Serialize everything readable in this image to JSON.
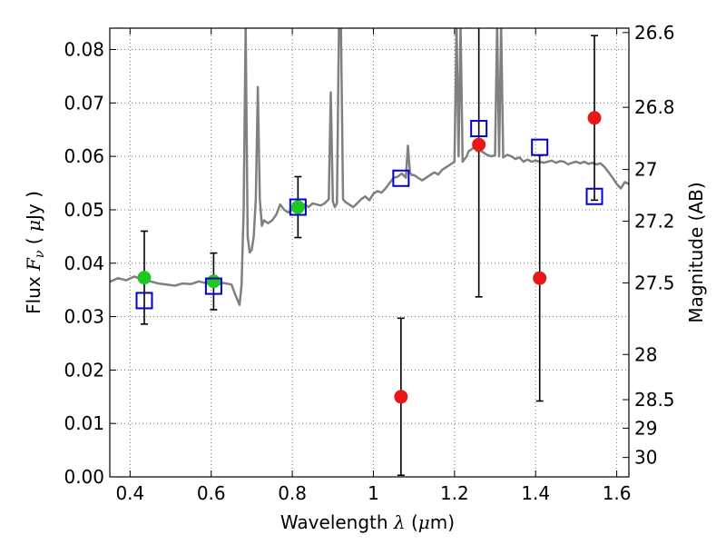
{
  "chart_data": {
    "type": "scatter",
    "xlabel": "Wavelength  λ (μm)",
    "ylabel": "Flux  Fν  ( μJy )",
    "ylabel_parts": [
      "Flux ",
      "F",
      "ν",
      " ( ",
      "μ",
      "Jy )"
    ],
    "xlabel_parts": [
      "Wavelength  ",
      "λ",
      " (",
      "μ",
      "m)"
    ],
    "y2label": "Magnitude (AB)",
    "xlim": [
      0.35,
      1.63
    ],
    "ylim": [
      0.0,
      0.084
    ],
    "grid": true,
    "x_ticks": [
      0.4,
      0.6,
      0.8,
      1.0,
      1.2,
      1.4,
      1.6
    ],
    "x_tick_labels": [
      "0.4",
      "0.6",
      "0.8",
      "1",
      "1.2",
      "1.4",
      "1.6"
    ],
    "y_ticks": [
      0.0,
      0.01,
      0.02,
      0.03,
      0.04,
      0.05,
      0.06,
      0.07,
      0.08
    ],
    "y_tick_labels": [
      "0.00",
      "0.01",
      "0.02",
      "0.03",
      "0.04",
      "0.05",
      "0.06",
      "0.07",
      "0.08"
    ],
    "mag_ticks": [
      26.6,
      26.8,
      27,
      27.2,
      27.5,
      28,
      28.5,
      29,
      30
    ],
    "mag_tick_labels": [
      "26.6",
      "26.8",
      "27",
      "27.2",
      "27.5",
      "28",
      "28.5",
      "29",
      "30"
    ],
    "colors": {
      "model": "#808080",
      "detected": "#1ec81e",
      "nondetected": "#e81818",
      "model_phot": "#0000cc",
      "errorbar": "#000000",
      "grid": "#777777"
    },
    "series": [
      {
        "marker": "circle",
        "color": "#1ec81e",
        "points": [
          {
            "x": 0.435,
            "y": 0.0373,
            "err": 0.0087
          },
          {
            "x": 0.606,
            "y": 0.0366,
            "err": 0.0053
          },
          {
            "x": 0.814,
            "y": 0.0505,
            "err": 0.0057
          }
        ]
      },
      {
        "marker": "circle",
        "color": "#e81818",
        "points": [
          {
            "x": 1.068,
            "y": 0.015,
            "err": 0.0147
          },
          {
            "x": 1.26,
            "y": 0.0622,
            "err": 0.0285
          },
          {
            "x": 1.41,
            "y": 0.0372,
            "err": 0.023
          },
          {
            "x": 1.545,
            "y": 0.0672,
            "err": 0.0154
          }
        ]
      },
      {
        "marker": "open-square",
        "color": "#0000cc",
        "points": [
          {
            "x": 0.435,
            "y": 0.033
          },
          {
            "x": 0.606,
            "y": 0.0357
          },
          {
            "x": 0.814,
            "y": 0.0505
          },
          {
            "x": 1.068,
            "y": 0.0559
          },
          {
            "x": 1.26,
            "y": 0.0652
          },
          {
            "x": 1.41,
            "y": 0.0617
          },
          {
            "x": 1.545,
            "y": 0.0525
          }
        ]
      }
    ],
    "model_spectrum": {
      "x": [
        0.35,
        0.37,
        0.39,
        0.41,
        0.43,
        0.45,
        0.47,
        0.49,
        0.51,
        0.53,
        0.55,
        0.57,
        0.59,
        0.61,
        0.63,
        0.65,
        0.66,
        0.67,
        0.675,
        0.68,
        0.685,
        0.69,
        0.695,
        0.7,
        0.705,
        0.71,
        0.715,
        0.72,
        0.725,
        0.73,
        0.74,
        0.75,
        0.76,
        0.77,
        0.78,
        0.79,
        0.8,
        0.81,
        0.82,
        0.83,
        0.84,
        0.85,
        0.86,
        0.87,
        0.88,
        0.89,
        0.895,
        0.9,
        0.905,
        0.91,
        0.915,
        0.92,
        0.925,
        0.93,
        0.94,
        0.95,
        0.96,
        0.97,
        0.98,
        0.99,
        1.0,
        1.01,
        1.02,
        1.03,
        1.04,
        1.05,
        1.06,
        1.07,
        1.08,
        1.085,
        1.09,
        1.095,
        1.1,
        1.11,
        1.12,
        1.13,
        1.14,
        1.15,
        1.16,
        1.17,
        1.18,
        1.19,
        1.2,
        1.205,
        1.21,
        1.215,
        1.22,
        1.225,
        1.23,
        1.235,
        1.24,
        1.245,
        1.25,
        1.255,
        1.26,
        1.27,
        1.28,
        1.29,
        1.3,
        1.305,
        1.31,
        1.315,
        1.32,
        1.33,
        1.34,
        1.35,
        1.36,
        1.37,
        1.38,
        1.39,
        1.4,
        1.41,
        1.42,
        1.43,
        1.44,
        1.45,
        1.46,
        1.47,
        1.48,
        1.49,
        1.5,
        1.51,
        1.52,
        1.53,
        1.54,
        1.55,
        1.56,
        1.57,
        1.58,
        1.59,
        1.6,
        1.61,
        1.62,
        1.63
      ],
      "y": [
        0.0365,
        0.0372,
        0.0368,
        0.0375,
        0.037,
        0.0366,
        0.0362,
        0.036,
        0.0358,
        0.0362,
        0.0361,
        0.0366,
        0.0362,
        0.0359,
        0.0363,
        0.036,
        0.034,
        0.0322,
        0.036,
        0.05,
        0.0845,
        0.045,
        0.042,
        0.0425,
        0.045,
        0.052,
        0.073,
        0.052,
        0.047,
        0.048,
        0.0475,
        0.048,
        0.049,
        0.051,
        0.05,
        0.0495,
        0.05,
        0.0505,
        0.051,
        0.051,
        0.0505,
        0.0512,
        0.051,
        0.0508,
        0.0512,
        0.052,
        0.072,
        0.0515,
        0.0505,
        0.0512,
        0.0845,
        0.0845,
        0.052,
        0.0515,
        0.051,
        0.0505,
        0.0512,
        0.052,
        0.0525,
        0.0518,
        0.053,
        0.0535,
        0.0532,
        0.054,
        0.055,
        0.056,
        0.0562,
        0.0568,
        0.056,
        0.062,
        0.057,
        0.0565,
        0.0565,
        0.056,
        0.0555,
        0.056,
        0.0565,
        0.057,
        0.0566,
        0.0575,
        0.058,
        0.0585,
        0.059,
        0.0845,
        0.06,
        0.0845,
        0.059,
        0.0595,
        0.06,
        0.061,
        0.0612,
        0.0615,
        0.062,
        0.061,
        0.0612,
        0.0608,
        0.0603,
        0.06,
        0.0602,
        0.0845,
        0.06,
        0.0845,
        0.0598,
        0.0603,
        0.06,
        0.0595,
        0.0598,
        0.059,
        0.0594,
        0.059,
        0.0592,
        0.059,
        0.0588,
        0.059,
        0.0592,
        0.0588,
        0.0591,
        0.059,
        0.0585,
        0.0588,
        0.059,
        0.0587,
        0.059,
        0.0586,
        0.0588,
        0.0585,
        0.0587,
        0.058,
        0.057,
        0.056,
        0.0548,
        0.054,
        0.0552,
        0.0548
      ]
    }
  }
}
